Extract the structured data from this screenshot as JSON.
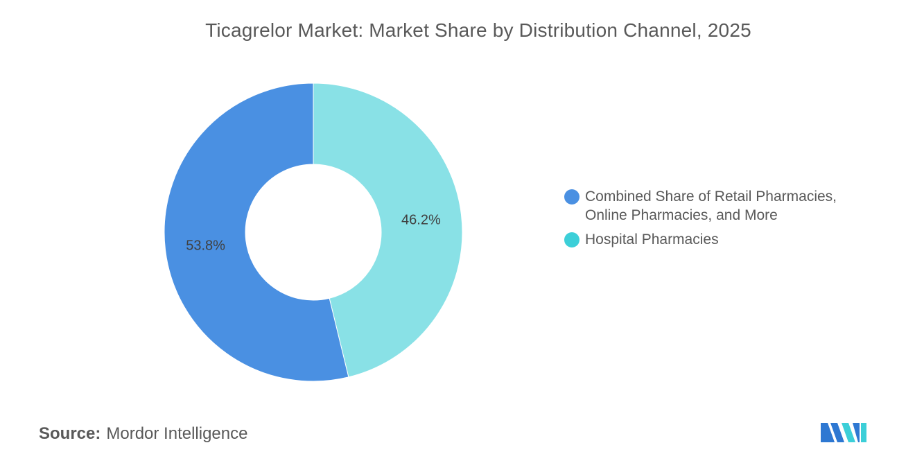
{
  "title": "Ticagrelor Market: Market Share by Distribution Channel, 2025",
  "chart_data": {
    "type": "pie",
    "style": "donut",
    "title": "Ticagrelor Market: Market Share by Distribution Channel, 2025",
    "slices": [
      {
        "label": "Hospital Pharmacies",
        "value": 46.2,
        "value_label": "46.2%",
        "color": "#89E1E6"
      },
      {
        "label": "Combined Share of Retail Pharmacies, Online Pharmacies, and More",
        "value": 53.8,
        "value_label": "53.8%",
        "color": "#4A90E2"
      }
    ],
    "legend": {
      "placement": "right",
      "items": [
        {
          "lines": [
            "Combined Share of Retail Pharmacies,",
            "Online Pharmacies, and More"
          ],
          "color": "#4A90E2"
        },
        {
          "lines": [
            "Hospital Pharmacies"
          ],
          "color": "#3CCFD8"
        }
      ]
    }
  },
  "source": {
    "label": "Source:",
    "value": "Mordor Intelligence"
  },
  "logo": {
    "icon": "mordor-intelligence-logo",
    "colors": [
      "#2E78D2",
      "#3CCFD8"
    ]
  }
}
